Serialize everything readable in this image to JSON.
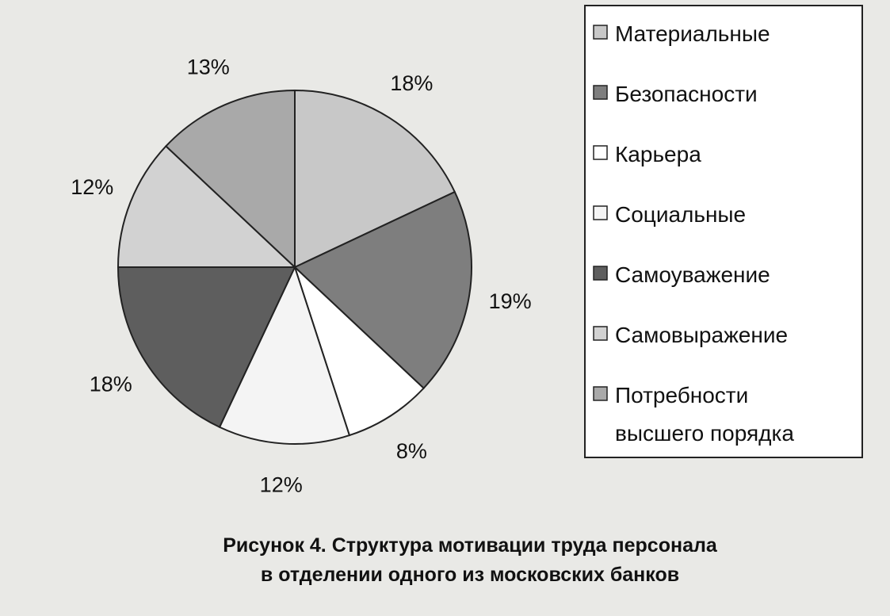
{
  "chart_data": {
    "type": "pie",
    "slices": [
      {
        "label": "Материальные",
        "value": 18,
        "value_label": "18%",
        "color": "#c8c8c8"
      },
      {
        "label": "Безопасности",
        "value": 19,
        "value_label": "19%",
        "color": "#7e7e7e"
      },
      {
        "label": "Карьера",
        "value": 8,
        "value_label": "8%",
        "color": "#ffffff"
      },
      {
        "label": "Социальные",
        "value": 12,
        "value_label": "12%",
        "color": "#f4f4f4"
      },
      {
        "label": "Самоуважение",
        "value": 18,
        "value_label": "18%",
        "color": "#5e5e5e"
      },
      {
        "label": "Самовыражение",
        "value": 12,
        "value_label": "12%",
        "color": "#d2d2d2"
      },
      {
        "label": "Потребности высшего порядка",
        "value": 13,
        "value_label": "13%",
        "color": "#a9a9a9"
      }
    ],
    "legend_lines": [
      [
        "Материальные"
      ],
      [
        "Безопасности"
      ],
      [
        "Карьера"
      ],
      [
        "Социальные"
      ],
      [
        "Самоуважение"
      ],
      [
        "Самовыражение"
      ],
      [
        "Потребности",
        "высшего порядка"
      ]
    ],
    "legend_position": "right",
    "start_angle": "12 o'clock, clockwise"
  },
  "caption": {
    "line1": "Рисунок 4. Структура мотивации труда персонала",
    "line2": "в отделении одного из московских банков"
  }
}
